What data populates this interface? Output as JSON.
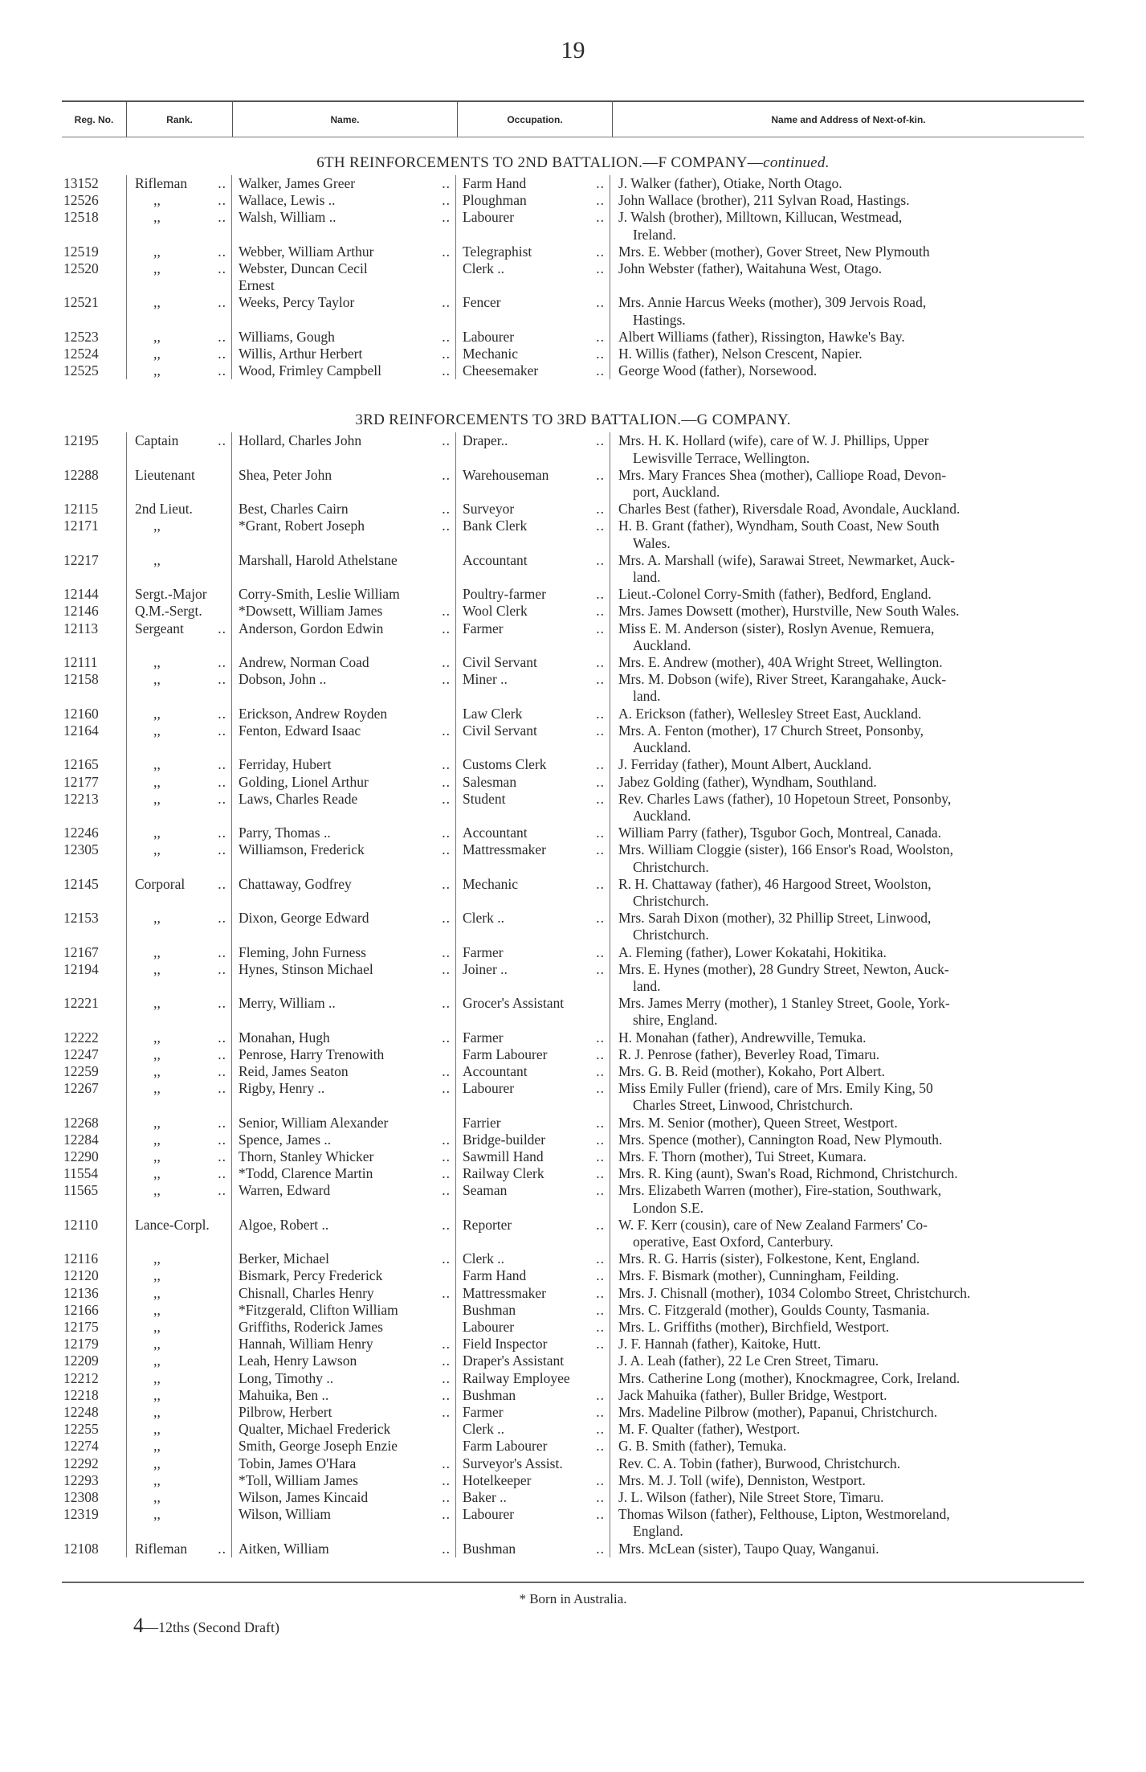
{
  "page_number": "19",
  "header": {
    "reg_no": "Reg. No.",
    "rank": "Rank.",
    "name": "Name.",
    "occupation": "Occupation.",
    "next_of_kin": "Name and Address of Next-of-kin."
  },
  "leader": "..",
  "sections": [
    {
      "title": "6TH REINFORCEMENTS TO 2ND BATTALION.—F COMPANY—",
      "title_suffix": "continued.",
      "rows": [
        [
          "13152",
          "Rifleman ..",
          "Walker, James Greer",
          true,
          "Farm Hand",
          true,
          "J. Walker (father), Otiake, North Otago."
        ],
        [
          "12526",
          ",, ..",
          "Wallace, Lewis ..",
          true,
          "Ploughman",
          true,
          "John Wallace (brother), 211 Sylvan Road, Hastings."
        ],
        [
          "12518",
          ",, ..",
          "Walsh, William ..",
          true,
          "Labourer",
          true,
          "J. Walsh (brother), Milltown, Killucan, Westmead,\nIreland."
        ],
        [
          "12519",
          ",, ..",
          "Webber, William Arthur",
          true,
          "Telegraphist",
          true,
          "Mrs. E. Webber (mother), Gover Street, New Plymouth"
        ],
        [
          "12520",
          ",, ..",
          "Webster, Duncan Cecil\n   Ernest",
          false,
          "Clerk ..",
          true,
          "John Webster (father), Waitahuna West, Otago."
        ],
        [
          "12521",
          ",, ..",
          "Weeks, Percy Taylor",
          true,
          "Fencer",
          true,
          "Mrs. Annie Harcus Weeks (mother), 309 Jervois Road,\nHastings."
        ],
        [
          "12523",
          ",, ..",
          "Williams, Gough",
          true,
          "Labourer",
          true,
          "Albert Williams (father), Rissington, Hawke's Bay."
        ],
        [
          "12524",
          ",, ..",
          "Willis, Arthur Herbert",
          true,
          "Mechanic",
          true,
          "H. Willis (father), Nelson Crescent, Napier."
        ],
        [
          "12525",
          ",, ..",
          "Wood, Frimley Campbell",
          true,
          "Cheesemaker",
          true,
          "George Wood (father), Norsewood."
        ]
      ]
    },
    {
      "title": "3RD REINFORCEMENTS TO 3RD BATTALION.—G COMPANY.",
      "title_suffix": "",
      "rows": [
        [
          "12195",
          "Captain ..",
          "Hollard, Charles John",
          true,
          "Draper..",
          true,
          "Mrs. H. K. Hollard (wife), care of W. J. Phillips, Upper\nLewisville Terrace, Wellington."
        ],
        [
          "12288",
          "Lieutenant",
          "Shea, Peter John",
          true,
          "Warehouseman",
          true,
          "Mrs. Mary Frances Shea (mother), Calliope Road, Devon-\nport, Auckland."
        ],
        [
          "12115",
          "2nd Lieut.",
          "Best, Charles Cairn",
          true,
          "Surveyor",
          true,
          "Charles Best (father), Riversdale Road, Avondale, Auckland."
        ],
        [
          "12171",
          ",,",
          "*Grant, Robert Joseph",
          true,
          "Bank Clerk",
          true,
          "H. B. Grant (father), Wyndham, South Coast, New South\nWales."
        ],
        [
          "12217",
          ",,",
          "Marshall, Harold Athelstane",
          false,
          "Accountant",
          true,
          "Mrs. A. Marshall (wife), Sarawai Street, Newmarket, Auck-\nland."
        ],
        [
          "12144",
          "Sergt.-Major",
          "Corry-Smith, Leslie William",
          false,
          "Poultry-farmer",
          true,
          "Lieut.-Colonel Corry-Smith (father), Bedford, England."
        ],
        [
          "12146",
          "Q.M.-Sergt.",
          "*Dowsett, William James",
          true,
          "Wool Clerk",
          true,
          "Mrs. James Dowsett (mother), Hurstville, New South Wales."
        ],
        [
          "12113",
          "Sergeant ..",
          "Anderson, Gordon Edwin",
          true,
          "Farmer",
          true,
          "Miss E. M. Anderson (sister), Roslyn Avenue, Remuera,\nAuckland."
        ],
        [
          "12111",
          ",, ..",
          "Andrew, Norman Coad",
          true,
          "Civil Servant",
          true,
          "Mrs. E. Andrew (mother), 40A Wright Street, Wellington."
        ],
        [
          "12158",
          ",, ..",
          "Dobson, John ..",
          true,
          "Miner ..",
          true,
          "Mrs. M. Dobson (wife), River Street, Karangahake, Auck-\nland."
        ],
        [
          "12160",
          ",, ..",
          "Erickson, Andrew Royden",
          false,
          "Law Clerk",
          true,
          "A. Erickson (father), Wellesley Street East, Auckland."
        ],
        [
          "12164",
          ",, ..",
          "Fenton, Edward Isaac",
          true,
          "Civil Servant",
          true,
          "Mrs. A. Fenton (mother), 17 Church Street, Ponsonby,\nAuckland."
        ],
        [
          "12165",
          ",, ..",
          "Ferriday, Hubert",
          true,
          "Customs Clerk",
          true,
          "J. Ferriday (father), Mount Albert, Auckland."
        ],
        [
          "12177",
          ",, ..",
          "Golding, Lionel Arthur",
          true,
          "Salesman",
          true,
          "Jabez Golding (father), Wyndham, Southland."
        ],
        [
          "12213",
          ",, ..",
          "Laws, Charles Reade",
          true,
          "Student",
          true,
          "Rev. Charles Laws (father), 10 Hopetoun Street, Ponsonby,\nAuckland."
        ],
        [
          "12246",
          ",, ..",
          "Parry, Thomas ..",
          true,
          "Accountant",
          true,
          "William Parry (father), Tsgubor Goch, Montreal, Canada."
        ],
        [
          "12305",
          ",, ..",
          "Williamson, Frederick",
          true,
          "Mattressmaker",
          true,
          "Mrs. William Cloggie (sister), 166 Ensor's Road, Woolston,\nChristchurch."
        ],
        [
          "12145",
          "Corporal ..",
          "Chattaway, Godfrey",
          true,
          "Mechanic",
          true,
          "R. H. Chattaway (father), 46 Hargood Street, Woolston,\nChristchurch."
        ],
        [
          "12153",
          ",, ..",
          "Dixon, George Edward",
          true,
          "Clerk ..",
          true,
          "Mrs. Sarah Dixon (mother), 32 Phillip Street, Linwood,\nChristchurch."
        ],
        [
          "12167",
          ",, ..",
          "Fleming, John Furness",
          true,
          "Farmer",
          true,
          "A. Fleming (father), Lower Kokatahi, Hokitika."
        ],
        [
          "12194",
          ",, ..",
          "Hynes, Stinson Michael",
          true,
          "Joiner ..",
          true,
          "Mrs. E. Hynes (mother), 28 Gundry Street, Newton, Auck-\nland."
        ],
        [
          "12221",
          ",, ..",
          "Merry, William ..",
          true,
          "Grocer's Assistant",
          false,
          "Mrs. James Merry (mother), 1 Stanley Street, Goole, York-\nshire, England."
        ],
        [
          "12222",
          ",, ..",
          "Monahan, Hugh",
          true,
          "Farmer",
          true,
          "H. Monahan (father), Andrewville, Temuka."
        ],
        [
          "12247",
          ",, ..",
          "Penrose, Harry Trenowith",
          false,
          "Farm Labourer",
          true,
          "R. J. Penrose (father), Beverley Road, Timaru."
        ],
        [
          "12259",
          ",, ..",
          "Reid, James Seaton",
          true,
          "Accountant",
          true,
          "Mrs. G. B. Reid (mother), Kokaho, Port Albert."
        ],
        [
          "12267",
          ",, ..",
          "Rigby, Henry ..",
          true,
          "Labourer",
          true,
          "Miss Emily Fuller (friend), care of Mrs. Emily King, 50\nCharles Street, Linwood, Christchurch."
        ],
        [
          "12268",
          ",, ..",
          "Senior, William Alexander",
          false,
          "Farrier",
          true,
          "Mrs. M. Senior (mother), Queen Street, Westport."
        ],
        [
          "12284",
          ",, ..",
          "Spence, James ..",
          true,
          "Bridge-builder",
          true,
          "Mrs. Spence (mother), Cannington Road, New Plymouth."
        ],
        [
          "12290",
          ",, ..",
          "Thorn, Stanley Whicker",
          true,
          "Sawmill Hand",
          true,
          "Mrs. F. Thorn (mother), Tui Street, Kumara."
        ],
        [
          "11554",
          ",, ..",
          "*Todd, Clarence Martin",
          true,
          "Railway Clerk",
          true,
          "Mrs. R. King (aunt), Swan's Road, Richmond, Christchurch."
        ],
        [
          "11565",
          ",, ..",
          "Warren, Edward",
          true,
          "Seaman",
          true,
          "Mrs. Elizabeth Warren (mother), Fire-station, Southwark,\nLondon S.E."
        ],
        [
          "12110",
          "Lance-Corpl.",
          "Algoe, Robert ..",
          true,
          "Reporter",
          true,
          "W. F. Kerr (cousin), care of New Zealand Farmers' Co-\noperative, East Oxford, Canterbury."
        ],
        [
          "12116",
          ",,",
          "Berker, Michael",
          true,
          "Clerk ..",
          true,
          "Mrs. R. G. Harris (sister), Folkestone, Kent, England."
        ],
        [
          "12120",
          ",,",
          "Bismark, Percy Frederick",
          false,
          "Farm Hand",
          true,
          "Mrs. F. Bismark (mother), Cunningham, Feilding."
        ],
        [
          "12136",
          ",,",
          "Chisnall, Charles Henry",
          true,
          "Mattressmaker",
          true,
          "Mrs. J. Chisnall (mother), 1034 Colombo Street, Christchurch."
        ],
        [
          "12166",
          ",,",
          "*Fitzgerald, Clifton William",
          false,
          "Bushman",
          true,
          "Mrs. C. Fitzgerald (mother), Goulds County, Tasmania."
        ],
        [
          "12175",
          ",,",
          "Griffiths, Roderick James",
          false,
          "Labourer",
          true,
          "Mrs. L. Griffiths (mother), Birchfield, Westport."
        ],
        [
          "12179",
          ",,",
          "Hannah, William Henry",
          true,
          "Field Inspector",
          true,
          "J. F. Hannah (father), Kaitoke, Hutt."
        ],
        [
          "12209",
          ",,",
          "Leah, Henry Lawson",
          true,
          "Draper's Assistant",
          false,
          "J. A. Leah (father), 22 Le Cren Street, Timaru."
        ],
        [
          "12212",
          ",,",
          "Long, Timothy ..",
          true,
          "Railway Employee",
          false,
          "Mrs. Catherine Long (mother), Knockmagree, Cork, Ireland."
        ],
        [
          "12218",
          ",,",
          "Mahuika, Ben ..",
          true,
          "Bushman",
          true,
          "Jack Mahuika (father), Buller Bridge, Westport."
        ],
        [
          "12248",
          ",,",
          "Pilbrow, Herbert",
          true,
          "Farmer",
          true,
          "Mrs. Madeline Pilbrow (mother), Papanui, Christchurch."
        ],
        [
          "12255",
          ",,",
          "Qualter, Michael Frederick",
          false,
          "Clerk ..",
          true,
          "M. F. Qualter (father), Westport."
        ],
        [
          "12274",
          ",,",
          "Smith, George Joseph Enzie",
          false,
          "Farm Labourer",
          true,
          "G. B. Smith (father), Temuka."
        ],
        [
          "12292",
          ",,",
          "Tobin, James O'Hara",
          true,
          "Surveyor's Assist.",
          false,
          "Rev. C. A. Tobin (father), Burwood, Christchurch."
        ],
        [
          "12293",
          ",,",
          "*Toll, William James",
          true,
          "Hotelkeeper",
          true,
          "Mrs. M. J. Toll (wife), Denniston, Westport."
        ],
        [
          "12308",
          ",,",
          "Wilson, James Kincaid",
          true,
          "Baker ..",
          true,
          "J. L. Wilson (father), Nile Street Store, Timaru."
        ],
        [
          "12319",
          ",,",
          "Wilson, William",
          true,
          "Labourer",
          true,
          "Thomas Wilson (father), Felthouse, Lipton, Westmoreland,\nEngland."
        ],
        [
          "12108",
          "Rifleman ..",
          "Aitken, William",
          true,
          "Bushman",
          true,
          "Mrs. McLean (sister), Taupo Quay, Wanganui."
        ]
      ]
    }
  ],
  "footnote": "* Born in Australia.",
  "signature": {
    "number": "4",
    "text": "—12ths (Second Draft)"
  }
}
